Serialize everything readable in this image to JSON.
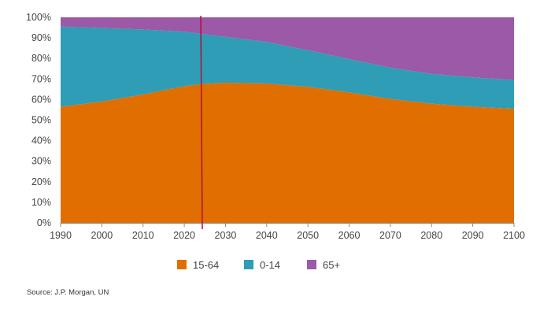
{
  "chart_data": {
    "type": "area",
    "stacked": true,
    "normalized": true,
    "x": [
      1990,
      2000,
      2010,
      2020,
      2024,
      2030,
      2040,
      2050,
      2060,
      2070,
      2080,
      2090,
      2100
    ],
    "series": [
      {
        "name": "15-64",
        "color": "#e06e00",
        "values": [
          56.5,
          59,
          62.5,
          66.5,
          67.5,
          68.2,
          67.8,
          66.2,
          63.5,
          60.3,
          58,
          56.5,
          55.5
        ]
      },
      {
        "name": "0-14",
        "color": "#2e9db5",
        "values": [
          39,
          35.8,
          31.6,
          26.5,
          24.5,
          22.3,
          20.2,
          17.8,
          16.2,
          15.2,
          14.5,
          14.3,
          14
        ]
      },
      {
        "name": "65+",
        "color": "#9b59a8",
        "values": [
          4.5,
          5.2,
          5.9,
          7,
          8,
          9.5,
          12,
          16,
          20.3,
          24.5,
          27.5,
          29.2,
          30.5
        ]
      }
    ],
    "marker_x": 2024,
    "marker_color": "#b0103c",
    "xlim": [
      1990,
      2100
    ],
    "ylim": [
      0,
      100
    ],
    "xticks": [
      "1990",
      "2000",
      "2010",
      "2020",
      "2030",
      "2040",
      "2050",
      "2060",
      "2070",
      "2080",
      "2090",
      "2100"
    ],
    "yticks": [
      "0%",
      "10%",
      "20%",
      "30%",
      "40%",
      "50%",
      "60%",
      "70%",
      "80%",
      "90%",
      "100%"
    ],
    "legend_position": "bottom-center",
    "grid": false
  },
  "source": "Source: J.P. Morgan, UN"
}
